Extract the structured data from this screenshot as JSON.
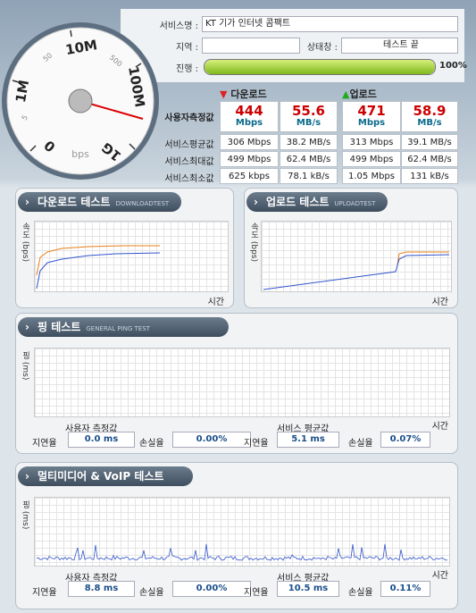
{
  "info": {
    "service_label": "서비스명 :",
    "service": "KT 기가 인터넷 콤팩트",
    "region_label": "지역 :",
    "status_label": "상태창 :",
    "status": "테스트 끝",
    "progress_label": "진행 :",
    "progress": {
      "value": 100,
      "label": "100%"
    }
  },
  "gauge": {
    "labels": [
      "0",
      "1M",
      "10M",
      "100M",
      "1G"
    ],
    "minor_labels": [
      "5",
      "50",
      "500"
    ],
    "unit": "bps"
  },
  "results": {
    "download": "다운로드",
    "upload": "업로드",
    "user": {
      "label": "사용자측정값",
      "cells": [
        {
          "num": "444",
          "unit": "Mbps"
        },
        {
          "num": "55.6",
          "unit": "MB/s"
        },
        {
          "num": "471",
          "unit": "Mbps"
        },
        {
          "num": "58.9",
          "unit": "MB/s"
        }
      ]
    },
    "rows": [
      {
        "label": "서비스평균값",
        "cells": [
          "306 Mbps",
          "38.2 MB/s",
          "313 Mbps",
          "39.1 MB/s"
        ]
      },
      {
        "label": "서비스최대값",
        "cells": [
          "499 Mbps",
          "62.4 MB/s",
          "499 Mbps",
          "62.4 MB/s"
        ]
      },
      {
        "label": "서비스최소값",
        "cells": [
          "625 kbps",
          "78.1 kB/s",
          "1.05 Mbps",
          "131 kB/s"
        ]
      }
    ]
  },
  "download_test": {
    "title": "다운로드 테스트",
    "subtitle": "DOWNLOADTEST",
    "y_label": "속도 (bps)",
    "x_label": "시간"
  },
  "upload_test": {
    "title": "업로드 테스트",
    "subtitle": "UPLOADTEST",
    "y_label": "속도 (bps)",
    "x_label": "시간"
  },
  "ping_test": {
    "title": "핑 테스트",
    "subtitle": "GENERAL PING TEST",
    "y_label": "핑 (ms)",
    "x_label": "시간",
    "user_label": "사용자 측정값",
    "avg_label": "서비스 평균값",
    "fields": [
      {
        "label": "지연율",
        "value": "0.0 ms"
      },
      {
        "label": "손실율",
        "value": "0.00%"
      },
      {
        "label": "지연율",
        "value": "5.1 ms"
      },
      {
        "label": "손실율",
        "value": "0.07%"
      }
    ]
  },
  "voip_test": {
    "title": "멀티미디어 & VoIP 테스트",
    "y_label": "핑 (ms)",
    "x_label": "시간",
    "user_label": "사용자 측정값",
    "avg_label": "서비스 평균값",
    "fields": [
      {
        "label": "지연율",
        "value": "8.8 ms"
      },
      {
        "label": "손실율",
        "value": "0.00%"
      },
      {
        "label": "지연율",
        "value": "10.5 ms"
      },
      {
        "label": "손실율",
        "value": "0.11%"
      }
    ]
  }
}
